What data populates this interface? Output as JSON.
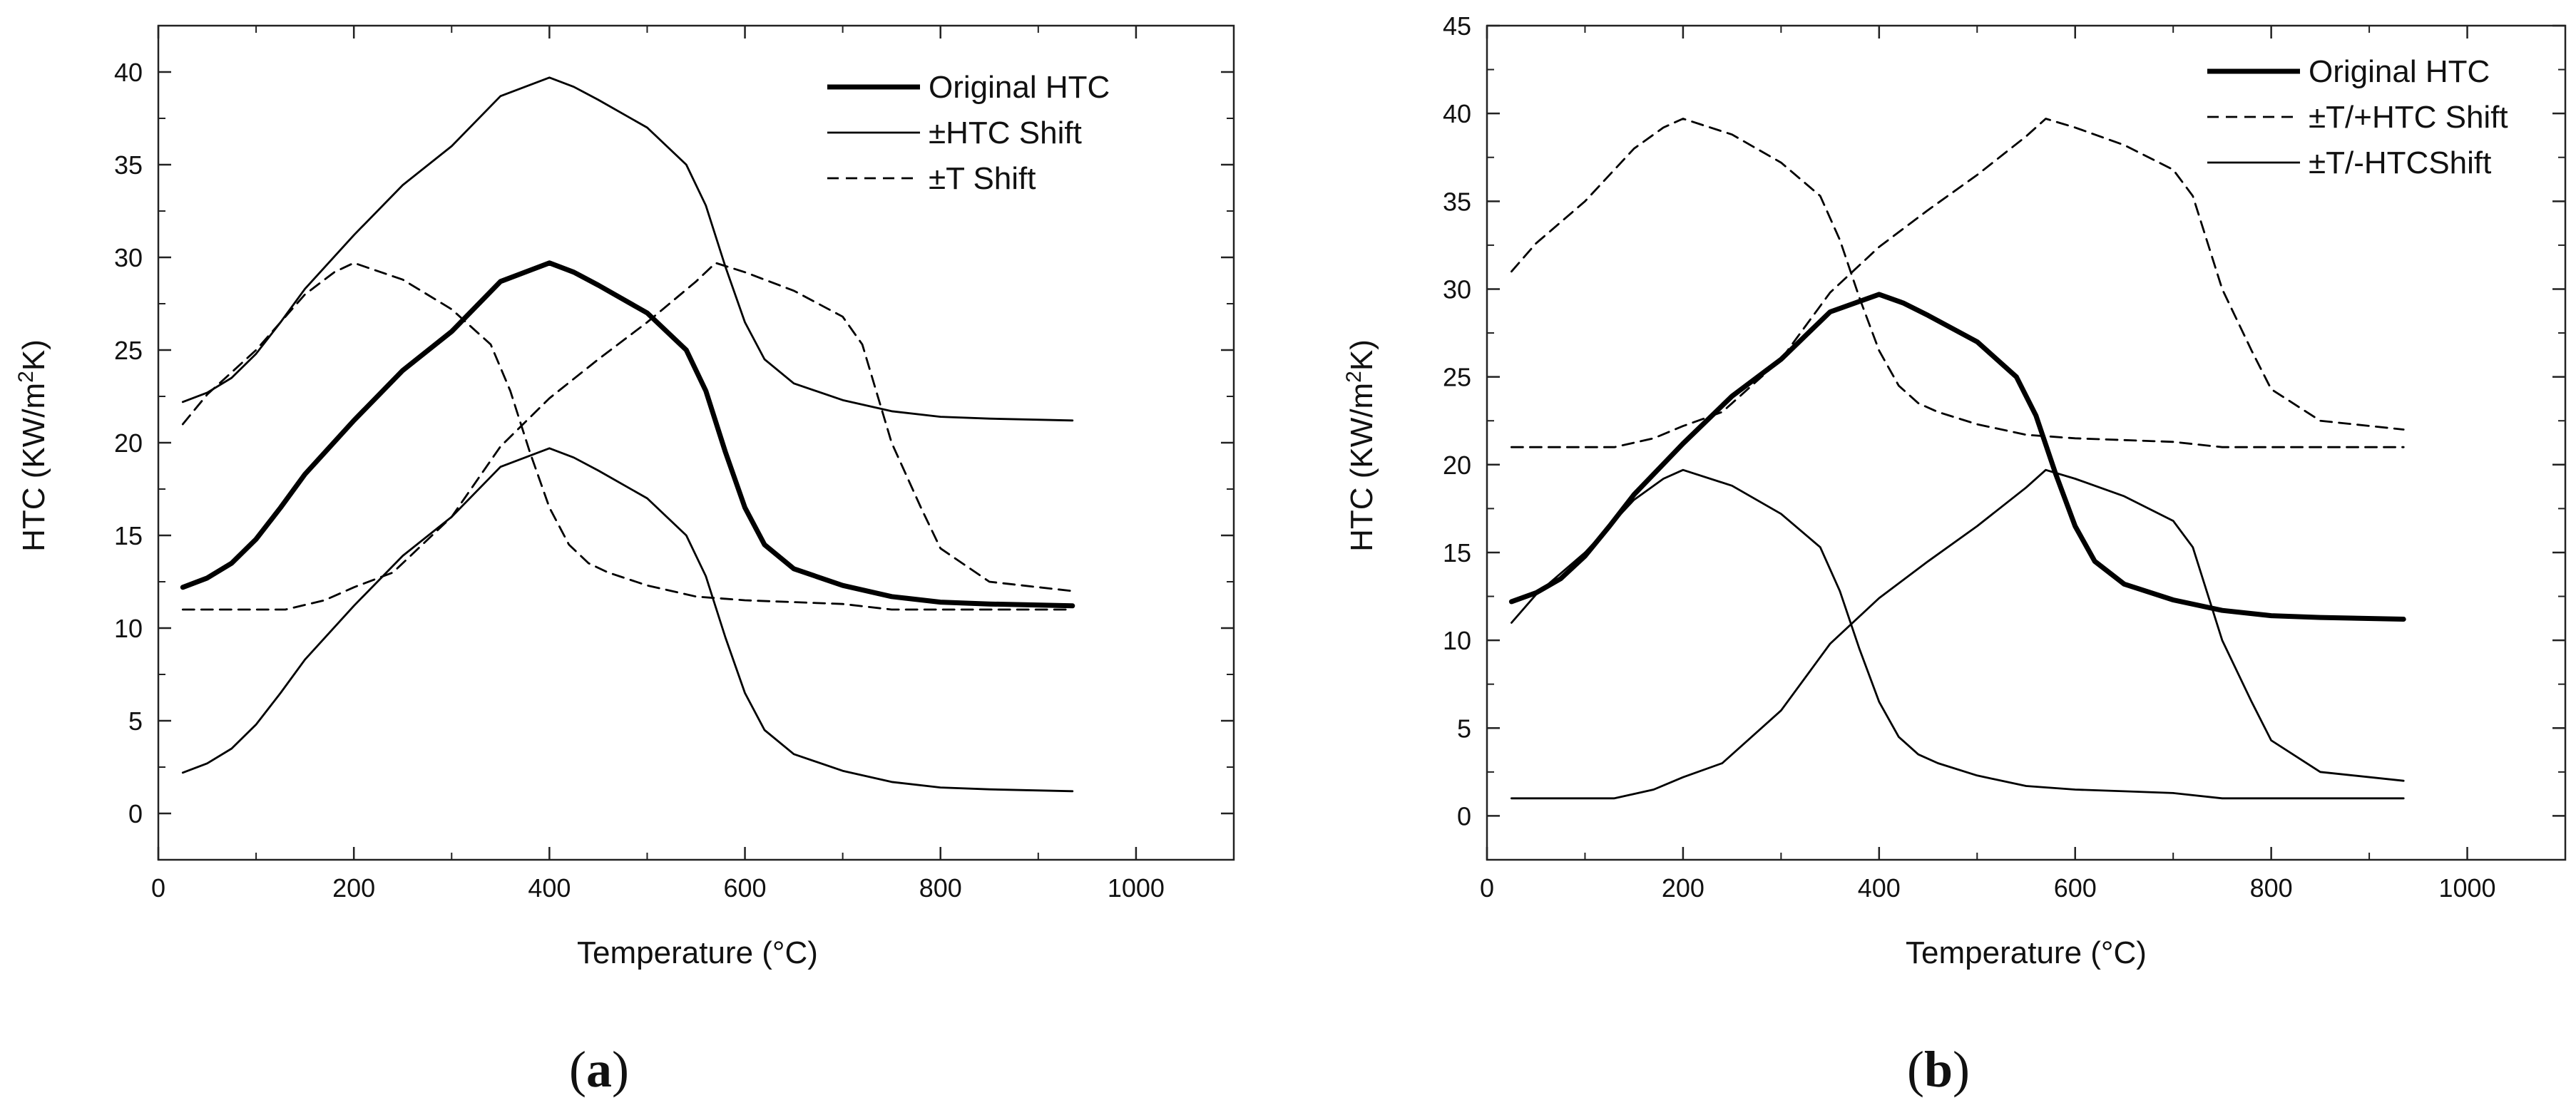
{
  "chart_data": [
    {
      "type": "line",
      "panel_label": "a",
      "title": "",
      "xlabel": "Temperature (°C)",
      "ylabel": "HTC (KW/m²K)",
      "xlim": [
        0,
        1100
      ],
      "ylim": [
        -2.5,
        42.5
      ],
      "xticks": [
        0,
        200,
        400,
        600,
        800,
        1000
      ],
      "yticks": [
        0,
        5,
        10,
        15,
        20,
        25,
        30,
        35,
        40
      ],
      "legend_position": "top-right",
      "series": [
        {
          "name": "Original HTC",
          "style": "thick-solid",
          "x": [
            25,
            50,
            75,
            100,
            125,
            150,
            200,
            250,
            300,
            350,
            400,
            425,
            450,
            500,
            540,
            560,
            580,
            600,
            620,
            650,
            700,
            750,
            800,
            850,
            935
          ],
          "y": [
            12.2,
            12.7,
            13.5,
            14.8,
            16.5,
            18.3,
            21.2,
            23.9,
            26.0,
            28.7,
            29.7,
            29.2,
            28.5,
            27.0,
            25.0,
            22.8,
            19.5,
            16.5,
            14.5,
            13.2,
            12.3,
            11.7,
            11.4,
            11.3,
            11.2
          ]
        },
        {
          "name": "±HTC Shift",
          "style": "thin-solid",
          "x": [
            25,
            50,
            75,
            100,
            125,
            150,
            200,
            250,
            300,
            350,
            400,
            425,
            450,
            500,
            540,
            560,
            580,
            600,
            620,
            650,
            700,
            750,
            800,
            850,
            935
          ],
          "y": [
            22.2,
            22.7,
            23.5,
            24.8,
            26.5,
            28.3,
            31.2,
            33.9,
            36.0,
            38.7,
            39.7,
            39.2,
            38.5,
            37.0,
            35.0,
            32.8,
            29.5,
            26.5,
            24.5,
            23.2,
            22.3,
            21.7,
            21.4,
            21.3,
            21.2
          ],
          "x_lower": [
            25,
            50,
            75,
            100,
            125,
            150,
            200,
            250,
            300,
            350,
            400,
            425,
            450,
            500,
            540,
            560,
            580,
            600,
            620,
            650,
            700,
            750,
            800,
            850,
            935
          ],
          "y_lower": [
            2.2,
            2.7,
            3.5,
            4.8,
            6.5,
            8.3,
            11.2,
            13.9,
            16.0,
            18.7,
            19.7,
            19.2,
            18.5,
            17.0,
            15.0,
            12.8,
            9.5,
            6.5,
            4.5,
            3.2,
            2.3,
            1.7,
            1.4,
            1.3,
            1.2
          ]
        },
        {
          "name": "±T Shift",
          "style": "dashed",
          "x": [
            25,
            50,
            75,
            100,
            130,
            150,
            180,
            200,
            250,
            300,
            340,
            360,
            380,
            400,
            420,
            440,
            460,
            500,
            550,
            600,
            650,
            700,
            750,
            800,
            850,
            935
          ],
          "y": [
            21.0,
            22.6,
            23.8,
            25.0,
            26.8,
            28.0,
            29.2,
            29.7,
            28.8,
            27.2,
            25.3,
            22.8,
            19.5,
            16.5,
            14.5,
            13.5,
            13.0,
            12.3,
            11.7,
            11.5,
            11.4,
            11.3,
            11.0,
            11.0,
            11.0,
            11.0
          ],
          "x_2": [
            25,
            75,
            130,
            170,
            200,
            240,
            300,
            350,
            400,
            450,
            500,
            550,
            570,
            600,
            650,
            700,
            720,
            750,
            780,
            800,
            850,
            935
          ],
          "y_2": [
            11.0,
            11.0,
            11.0,
            11.5,
            12.2,
            13.0,
            16.0,
            19.8,
            22.4,
            24.5,
            26.5,
            28.7,
            29.7,
            29.2,
            28.2,
            26.8,
            25.3,
            20.0,
            16.5,
            14.3,
            12.5,
            12.0
          ]
        }
      ]
    },
    {
      "type": "line",
      "panel_label": "b",
      "title": "",
      "xlabel": "Temperature (°C)",
      "ylabel": "HTC (KW/m²K)",
      "xlim": [
        0,
        1100
      ],
      "ylim": [
        -2.5,
        45
      ],
      "xticks": [
        0,
        200,
        400,
        600,
        800,
        1000
      ],
      "yticks": [
        0,
        5,
        10,
        15,
        20,
        25,
        30,
        35,
        40,
        45
      ],
      "legend_position": "top-right",
      "series": [
        {
          "name": "Original HTC",
          "style": "thick-solid",
          "x": [
            25,
            50,
            75,
            100,
            125,
            150,
            200,
            250,
            300,
            350,
            400,
            425,
            450,
            500,
            540,
            560,
            580,
            600,
            620,
            650,
            700,
            750,
            800,
            850,
            935
          ],
          "y": [
            12.2,
            12.7,
            13.5,
            14.8,
            16.5,
            18.3,
            21.2,
            23.9,
            26.0,
            28.7,
            29.7,
            29.2,
            28.5,
            27.0,
            25.0,
            22.8,
            19.5,
            16.5,
            14.5,
            13.2,
            12.3,
            11.7,
            11.4,
            11.3,
            11.2
          ]
        },
        {
          "name": "±T/+HTC Shift",
          "style": "dashed",
          "x": [
            25,
            50,
            75,
            100,
            130,
            150,
            180,
            200,
            250,
            300,
            340,
            360,
            380,
            400,
            420,
            440,
            460,
            500,
            550,
            600,
            650,
            700,
            750,
            800,
            850,
            935
          ],
          "y": [
            31.0,
            32.6,
            33.8,
            35.0,
            36.8,
            38.0,
            39.2,
            39.7,
            38.8,
            37.2,
            35.3,
            32.8,
            29.5,
            26.5,
            24.5,
            23.5,
            23.0,
            22.3,
            21.7,
            21.5,
            21.4,
            21.3,
            21.0,
            21.0,
            21.0,
            21.0
          ],
          "x_2": [
            25,
            75,
            130,
            170,
            200,
            240,
            300,
            350,
            400,
            450,
            500,
            550,
            570,
            600,
            650,
            700,
            720,
            750,
            780,
            800,
            850,
            935
          ],
          "y_2": [
            21.0,
            21.0,
            21.0,
            21.5,
            22.2,
            23.0,
            26.0,
            29.8,
            32.4,
            34.5,
            36.5,
            38.7,
            39.7,
            39.2,
            38.2,
            36.8,
            35.3,
            30.0,
            26.5,
            24.3,
            22.5,
            22.0
          ]
        },
        {
          "name": "±T/-HTCShift",
          "style": "thin-solid",
          "x": [
            25,
            50,
            75,
            100,
            130,
            150,
            180,
            200,
            250,
            300,
            340,
            360,
            380,
            400,
            420,
            440,
            460,
            500,
            550,
            600,
            650,
            700,
            750,
            800,
            850,
            935
          ],
          "y": [
            11.0,
            12.6,
            13.8,
            15.0,
            16.8,
            18.0,
            19.2,
            19.7,
            18.8,
            17.2,
            15.3,
            12.8,
            9.5,
            6.5,
            4.5,
            3.5,
            3.0,
            2.3,
            1.7,
            1.5,
            1.4,
            1.3,
            1.0,
            1.0,
            1.0,
            1.0
          ],
          "x_2": [
            25,
            75,
            130,
            170,
            200,
            240,
            300,
            350,
            400,
            450,
            500,
            550,
            570,
            600,
            650,
            700,
            720,
            750,
            780,
            800,
            850,
            935
          ],
          "y_2": [
            1.0,
            1.0,
            1.0,
            1.5,
            2.2,
            3.0,
            6.0,
            9.8,
            12.4,
            14.5,
            16.5,
            18.7,
            19.7,
            19.2,
            18.2,
            16.8,
            15.3,
            10.0,
            6.5,
            4.3,
            2.5,
            2.0
          ]
        }
      ]
    }
  ],
  "labels": {
    "panel_a": "a",
    "panel_b": "b"
  }
}
